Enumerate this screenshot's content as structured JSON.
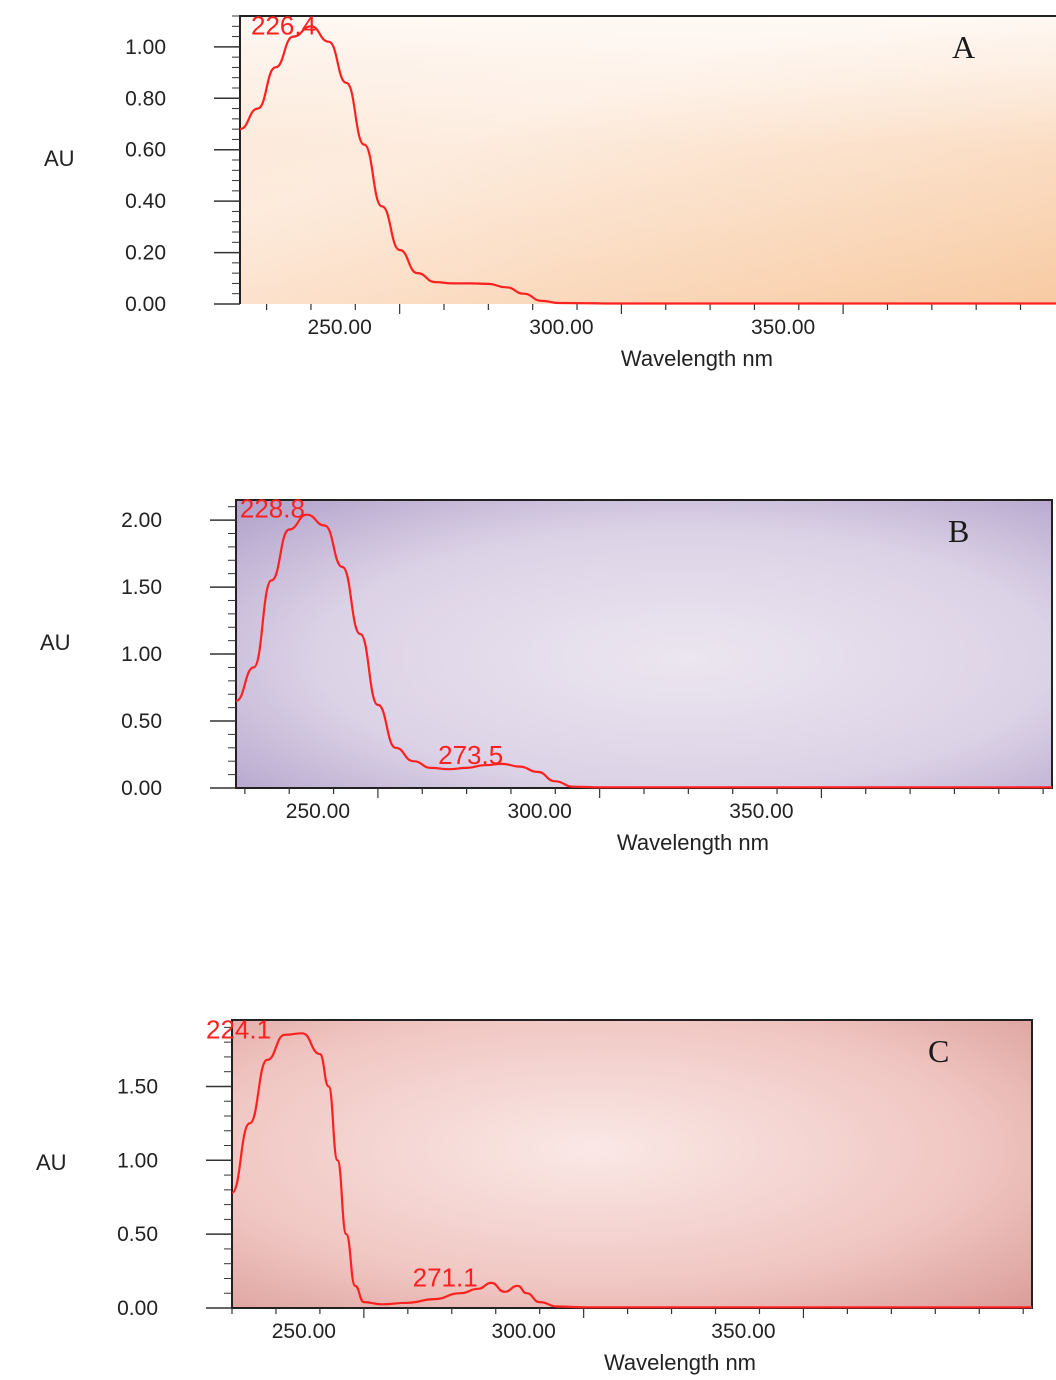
{
  "chart_data": [
    {
      "type": "line",
      "panel_label": "A",
      "title": "",
      "xlabel": "Wavelength nm",
      "ylabel": "AU",
      "xlim": [
        214,
        398
      ],
      "ylim": [
        0,
        1.12
      ],
      "x_ticks": [
        "250.00",
        "300.00",
        "350.00"
      ],
      "x_tick_values": [
        250,
        300,
        350
      ],
      "y_ticks": [
        "0.00",
        "0.20",
        "0.40",
        "0.60",
        "0.80",
        "1.00"
      ],
      "y_tick_values": [
        0,
        0.2,
        0.4,
        0.6,
        0.8,
        1.0
      ],
      "background": "peach",
      "line_color": "#ff2020",
      "series": [
        {
          "values": [
            [
              214,
              0.68
            ],
            [
              218,
              0.76
            ],
            [
              222,
              0.92
            ],
            [
              226,
              1.04
            ],
            [
              230,
              1.08
            ],
            [
              234,
              1.02
            ],
            [
              238,
              0.86
            ],
            [
              242,
              0.62
            ],
            [
              246,
              0.38
            ],
            [
              250,
              0.21
            ],
            [
              254,
              0.12
            ],
            [
              258,
              0.085
            ],
            [
              262,
              0.08
            ],
            [
              266,
              0.08
            ],
            [
              270,
              0.078
            ],
            [
              274,
              0.065
            ],
            [
              278,
              0.04
            ],
            [
              282,
              0.012
            ],
            [
              286,
              0.004
            ],
            [
              300,
              0.002
            ],
            [
              320,
              0.002
            ],
            [
              350,
              0.002
            ],
            [
              398,
              0.002
            ]
          ]
        }
      ],
      "annotations": [
        {
          "text": "226.4",
          "x": 226.4,
          "y": 1.08
        }
      ]
    },
    {
      "type": "line",
      "panel_label": "B",
      "title": "",
      "xlabel": "Wavelength nm",
      "ylabel": "AU",
      "xlim": [
        218,
        402
      ],
      "ylim": [
        0,
        2.15
      ],
      "x_ticks": [
        "250.00",
        "300.00",
        "350.00"
      ],
      "x_tick_values": [
        250,
        300,
        350
      ],
      "y_ticks": [
        "0.00",
        "0.50",
        "1.00",
        "1.50",
        "2.00"
      ],
      "y_tick_values": [
        0,
        0.5,
        1.0,
        1.5,
        2.0
      ],
      "background": "lavender",
      "line_color": "#ff2020",
      "series": [
        {
          "values": [
            [
              218,
              0.65
            ],
            [
              222,
              0.9
            ],
            [
              226,
              1.55
            ],
            [
              230,
              1.93
            ],
            [
              234,
              2.04
            ],
            [
              238,
              1.96
            ],
            [
              242,
              1.65
            ],
            [
              246,
              1.15
            ],
            [
              250,
              0.62
            ],
            [
              254,
              0.3
            ],
            [
              258,
              0.2
            ],
            [
              262,
              0.15
            ],
            [
              266,
              0.14
            ],
            [
              270,
              0.15
            ],
            [
              274,
              0.17
            ],
            [
              278,
              0.18
            ],
            [
              282,
              0.16
            ],
            [
              286,
              0.12
            ],
            [
              290,
              0.05
            ],
            [
              294,
              0.01
            ],
            [
              300,
              0.005
            ],
            [
              330,
              0.005
            ],
            [
              402,
              0.005
            ]
          ]
        }
      ],
      "annotations": [
        {
          "text": "228.8",
          "x": 228.8,
          "y": 2.08
        },
        {
          "text": "273.5",
          "x": 273.5,
          "y": 0.24
        }
      ]
    },
    {
      "type": "line",
      "panel_label": "C",
      "title": "",
      "xlabel": "Wavelength nm",
      "ylabel": "AU",
      "xlim": [
        220,
        402
      ],
      "ylim": [
        0,
        1.95
      ],
      "x_ticks": [
        "250.00",
        "300.00",
        "350.00"
      ],
      "x_tick_values": [
        250,
        300,
        350
      ],
      "y_ticks": [
        "0.00",
        "0.50",
        "1.00",
        "1.50"
      ],
      "y_tick_values": [
        0,
        0.5,
        1.0,
        1.5
      ],
      "background": "pink",
      "line_color": "#ff2020",
      "series": [
        {
          "values": [
            [
              220,
              0.78
            ],
            [
              224,
              1.25
            ],
            [
              228,
              1.68
            ],
            [
              232,
              1.85
            ],
            [
              236,
              1.86
            ],
            [
              240,
              1.72
            ],
            [
              242,
              1.5
            ],
            [
              244,
              1.0
            ],
            [
              246,
              0.5
            ],
            [
              248,
              0.15
            ],
            [
              250,
              0.04
            ],
            [
              254,
              0.025
            ],
            [
              260,
              0.035
            ],
            [
              266,
              0.06
            ],
            [
              272,
              0.1
            ],
            [
              276,
              0.13
            ],
            [
              279,
              0.17
            ],
            [
              282,
              0.11
            ],
            [
              285,
              0.15
            ],
            [
              287,
              0.1
            ],
            [
              290,
              0.04
            ],
            [
              294,
              0.01
            ],
            [
              300,
              0.005
            ],
            [
              402,
              0.005
            ]
          ]
        }
      ],
      "annotations": [
        {
          "text": "224.1",
          "x": 224.1,
          "y": 1.88
        },
        {
          "text": "271.1",
          "x": 271.1,
          "y": 0.2
        }
      ]
    }
  ]
}
